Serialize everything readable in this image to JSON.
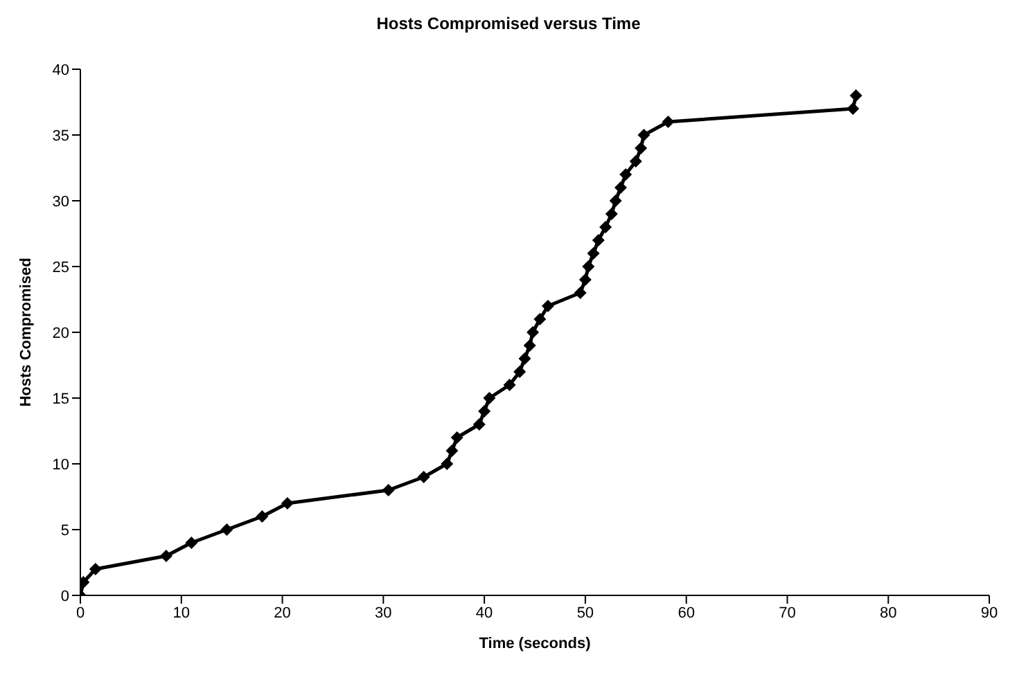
{
  "chart_data": {
    "type": "line",
    "title": "Hosts Compromised versus Time",
    "xlabel": "Time (seconds)",
    "ylabel": "Hosts Compromised",
    "x": [
      0,
      0.3,
      1.5,
      8.5,
      11,
      14.5,
      18,
      20.5,
      30.5,
      34,
      36.3,
      36.8,
      37.3,
      39.5,
      40,
      40.5,
      42.5,
      43.5,
      44,
      44.5,
      44.8,
      45.5,
      46.3,
      49.5,
      50,
      50.3,
      50.8,
      51.3,
      52,
      52.6,
      53,
      53.5,
      54,
      55,
      55.5,
      55.8,
      58.2,
      76.5,
      76.8
    ],
    "series": [
      {
        "color": "#000000",
        "values": [
          0,
          1,
          2,
          3,
          4,
          5,
          6,
          7,
          8,
          9,
          10,
          11,
          12,
          13,
          14,
          15,
          16,
          17,
          18,
          19,
          20,
          21,
          22,
          23,
          24,
          25,
          26,
          27,
          28,
          29,
          30,
          31,
          32,
          33,
          34,
          35,
          36,
          37,
          38
        ]
      }
    ],
    "xlim": [
      0,
      90
    ],
    "xticks": [
      0,
      10,
      20,
      30,
      40,
      50,
      60,
      70,
      80,
      90
    ],
    "ylim": [
      0,
      40
    ],
    "yticks": [
      0,
      5,
      10,
      15,
      20,
      25,
      30,
      35,
      40
    ],
    "grid": false,
    "legend": false,
    "marker": "diamond",
    "line_style": "solid"
  }
}
